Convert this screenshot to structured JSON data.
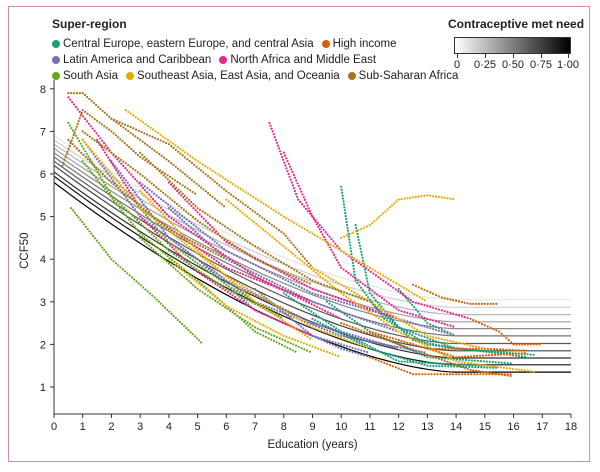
{
  "chart_data": {
    "type": "scatter",
    "xlabel": "Education (years)",
    "ylabel": "CCF50",
    "xlim": [
      0,
      18
    ],
    "ylim": [
      0.37,
      8.1
    ],
    "xticks": [
      "0",
      "1",
      "2",
      "3",
      "4",
      "5",
      "6",
      "7",
      "8",
      "9",
      "10",
      "11",
      "12",
      "13",
      "14",
      "15",
      "16",
      "17",
      "18"
    ],
    "yticks": [
      "1",
      "2",
      "3",
      "4",
      "5",
      "6",
      "7",
      "8"
    ],
    "grid": false,
    "legend": {
      "title": "Super-region",
      "placement": "top-left"
    },
    "colorbar": {
      "title": "Contraceptive met need",
      "ticks": [
        "0",
        "0·25",
        "0·50",
        "0·75",
        "1·00"
      ],
      "range": [
        0,
        1
      ],
      "colors": [
        "#ffffff",
        "#000000"
      ],
      "placement": "top-right"
    },
    "series": [
      {
        "name": "Central Europe, eastern Europe, and central Asia",
        "color": "#1b9e77",
        "trajectories": [
          [
            [
              9.5,
              3.0
            ],
            [
              11,
              2.3
            ],
            [
              13,
              1.7
            ],
            [
              16,
              1.55
            ]
          ],
          [
            [
              10,
              5.7
            ],
            [
              10.5,
              3.5
            ],
            [
              11.5,
              2.6
            ],
            [
              13,
              2.0
            ],
            [
              16.5,
              1.7
            ]
          ],
          [
            [
              10.5,
              4.8
            ],
            [
              11,
              3.2
            ],
            [
              12,
              2.4
            ],
            [
              14,
              1.9
            ]
          ],
          [
            [
              8,
              3.2
            ],
            [
              10,
              2.3
            ],
            [
              12,
              1.6
            ],
            [
              15,
              1.5
            ]
          ],
          [
            [
              11,
              3.0
            ],
            [
              12.5,
              2.1
            ],
            [
              14,
              1.9
            ],
            [
              16.8,
              1.75
            ]
          ],
          [
            [
              9,
              2.6
            ],
            [
              11,
              1.9
            ],
            [
              13,
              1.5
            ],
            [
              15.5,
              1.45
            ]
          ],
          [
            [
              12,
              3.3
            ],
            [
              13,
              2.5
            ],
            [
              14,
              2.2
            ]
          ]
        ]
      },
      {
        "name": "High income",
        "color": "#d95f02",
        "trajectories": [
          [
            [
              12.5,
              3.4
            ],
            [
              13.5,
              3.1
            ],
            [
              14.5,
              2.95
            ],
            [
              15.5,
              2.95
            ]
          ],
          [
            [
              14.5,
              2.6
            ],
            [
              15.5,
              2.3
            ],
            [
              16,
              2.0
            ],
            [
              17,
              2.0
            ]
          ],
          [
            [
              11,
              2.3
            ],
            [
              13,
              1.9
            ],
            [
              15,
              1.9
            ],
            [
              16.5,
              1.85
            ]
          ],
          [
            [
              11,
              1.7
            ],
            [
              12.5,
              1.3
            ],
            [
              14,
              1.3
            ],
            [
              16,
              1.3
            ]
          ],
          [
            [
              12,
              2.1
            ],
            [
              14,
              1.7
            ],
            [
              16.5,
              1.8
            ]
          ],
          [
            [
              10,
              2.5
            ],
            [
              12,
              2.0
            ],
            [
              14.5,
              1.4
            ],
            [
              16,
              1.25
            ]
          ]
        ]
      },
      {
        "name": "Latin America and Caribbean",
        "color": "#7570b3",
        "trajectories": [
          [
            [
              1,
              6.8
            ],
            [
              3,
              5.0
            ],
            [
              6,
              3.5
            ],
            [
              9,
              2.5
            ],
            [
              12,
              1.9
            ]
          ],
          [
            [
              2,
              6.3
            ],
            [
              4,
              4.5
            ],
            [
              7,
              3.0
            ],
            [
              10,
              2.2
            ],
            [
              13,
              1.8
            ]
          ],
          [
            [
              4,
              5.2
            ],
            [
              6,
              4.0
            ],
            [
              9,
              3.0
            ],
            [
              12,
              2.3
            ]
          ],
          [
            [
              5,
              4.0
            ],
            [
              7,
              2.8
            ],
            [
              10,
              1.9
            ],
            [
              11,
              1.7
            ]
          ],
          [
            [
              3,
              5.8
            ],
            [
              6,
              4.2
            ],
            [
              9,
              3.2
            ],
            [
              12,
              2.6
            ],
            [
              14,
              2.2
            ]
          ],
          [
            [
              7,
              3.3
            ],
            [
              9,
              2.2
            ],
            [
              11,
              1.8
            ]
          ]
        ]
      },
      {
        "name": "North Africa and Middle East",
        "color": "#e7298a",
        "trajectories": [
          [
            [
              0.5,
              7.8
            ],
            [
              2,
              6.5
            ],
            [
              4,
              5.0
            ],
            [
              7,
              3.6
            ],
            [
              10,
              2.6
            ]
          ],
          [
            [
              8,
              6.5
            ],
            [
              9,
              5.0
            ],
            [
              10,
              3.8
            ],
            [
              12,
              2.8
            ],
            [
              14,
              2.4
            ]
          ],
          [
            [
              1.5,
              6.8
            ],
            [
              3,
              5.2
            ],
            [
              6,
              3.8
            ],
            [
              9,
              3.0
            ]
          ],
          [
            [
              7.5,
              7.2
            ],
            [
              8.5,
              5.4
            ],
            [
              10,
              4.2
            ],
            [
              12.5,
              3.0
            ],
            [
              14.5,
              2.6
            ]
          ],
          [
            [
              4,
              5.8
            ],
            [
              6,
              4.4
            ],
            [
              9,
              3.3
            ],
            [
              12,
              2.6
            ]
          ],
          [
            [
              3,
              5.0
            ],
            [
              5,
              3.7
            ],
            [
              7,
              2.8
            ],
            [
              9,
              2.2
            ]
          ]
        ]
      },
      {
        "name": "South Asia",
        "color": "#66a61e",
        "trajectories": [
          [
            [
              0.6,
              5.2
            ],
            [
              2,
              4.0
            ],
            [
              3.5,
              3.1
            ],
            [
              5.2,
              2.0
            ]
          ],
          [
            [
              0.5,
              7.2
            ],
            [
              2,
              5.5
            ],
            [
              4,
              4.2
            ],
            [
              6,
              3.3
            ],
            [
              8,
              2.6
            ]
          ],
          [
            [
              1,
              6.3
            ],
            [
              3,
              4.6
            ],
            [
              5,
              3.5
            ],
            [
              7,
              2.3
            ],
            [
              8.5,
              1.8
            ]
          ],
          [
            [
              2,
              6.0
            ],
            [
              4,
              4.4
            ],
            [
              6,
              3.4
            ],
            [
              8,
              2.6
            ]
          ],
          [
            [
              3,
              4.5
            ],
            [
              5,
              3.3
            ],
            [
              7,
              2.4
            ],
            [
              9,
              1.8
            ]
          ]
        ]
      },
      {
        "name": "Southeast Asia, East Asia, and Oceania",
        "color": "#e6ab02",
        "trajectories": [
          [
            [
              10,
              4.5
            ],
            [
              11,
              4.8
            ],
            [
              12,
              5.4
            ],
            [
              13,
              5.5
            ],
            [
              14,
              5.4
            ]
          ],
          [
            [
              2.5,
              7.5
            ],
            [
              5,
              6.3
            ],
            [
              8,
              5.0
            ],
            [
              11,
              3.8
            ],
            [
              13,
              3.0
            ]
          ],
          [
            [
              1,
              6.8
            ],
            [
              3,
              5.2
            ],
            [
              6,
              3.6
            ],
            [
              9,
              2.4
            ],
            [
              11,
              1.9
            ]
          ],
          [
            [
              4,
              4.0
            ],
            [
              6,
              2.9
            ],
            [
              8,
              2.2
            ],
            [
              10,
              1.7
            ]
          ],
          [
            [
              6,
              5.4
            ],
            [
              8,
              4.3
            ],
            [
              10,
              3.2
            ],
            [
              12,
              2.3
            ],
            [
              14,
              1.6
            ],
            [
              16.8,
              1.35
            ]
          ],
          [
            [
              3,
              5.6
            ],
            [
              5,
              4.2
            ],
            [
              7,
              3.0
            ],
            [
              9,
              2.1
            ]
          ],
          [
            [
              9,
              3.8
            ],
            [
              11,
              3.0
            ],
            [
              13,
              2.2
            ],
            [
              15,
              1.9
            ]
          ]
        ]
      },
      {
        "name": "Sub-Saharan Africa",
        "color": "#a6761d",
        "trajectories": [
          [
            [
              0.5,
              7.9
            ],
            [
              1,
              7.9
            ],
            [
              2,
              7.3
            ],
            [
              4,
              6.3
            ],
            [
              6,
              5.2
            ]
          ],
          [
            [
              0.3,
              6.2
            ],
            [
              1,
              7.5
            ],
            [
              2,
              7.0
            ],
            [
              3,
              6.4
            ],
            [
              5,
              5.5
            ]
          ],
          [
            [
              1,
              7.0
            ],
            [
              3,
              6.0
            ],
            [
              5,
              4.9
            ],
            [
              7,
              4.0
            ],
            [
              9,
              3.4
            ]
          ],
          [
            [
              0.5,
              6.8
            ],
            [
              2,
              5.8
            ],
            [
              4,
              4.7
            ],
            [
              6,
              4.0
            ]
          ],
          [
            [
              2,
              7.3
            ],
            [
              4,
              6.7
            ],
            [
              6,
              5.6
            ],
            [
              8,
              4.6
            ],
            [
              9,
              3.8
            ]
          ],
          [
            [
              3,
              6.5
            ],
            [
              5,
              5.2
            ],
            [
              7,
              4.3
            ],
            [
              9,
              3.5
            ],
            [
              11,
              3.0
            ]
          ]
        ]
      }
    ],
    "reference_curves": [
      {
        "met_need": 0.0,
        "y_start": 6.9,
        "y_end": 3.05
      },
      {
        "met_need": 0.1,
        "y_start": 6.8,
        "y_end": 2.87
      },
      {
        "met_need": 0.2,
        "y_start": 6.7,
        "y_end": 2.7
      },
      {
        "met_need": 0.3,
        "y_start": 6.6,
        "y_end": 2.53
      },
      {
        "met_need": 0.4,
        "y_start": 6.5,
        "y_end": 2.37
      },
      {
        "met_need": 0.5,
        "y_start": 6.4,
        "y_end": 2.2
      },
      {
        "met_need": 0.6,
        "y_start": 6.3,
        "y_end": 2.02
      },
      {
        "met_need": 0.7,
        "y_start": 6.2,
        "y_end": 1.85
      },
      {
        "met_need": 0.8,
        "y_start": 6.05,
        "y_end": 1.68
      },
      {
        "met_need": 0.9,
        "y_start": 5.95,
        "y_end": 1.52
      },
      {
        "met_need": 1.0,
        "y_start": 5.8,
        "y_end": 1.35
      }
    ]
  }
}
